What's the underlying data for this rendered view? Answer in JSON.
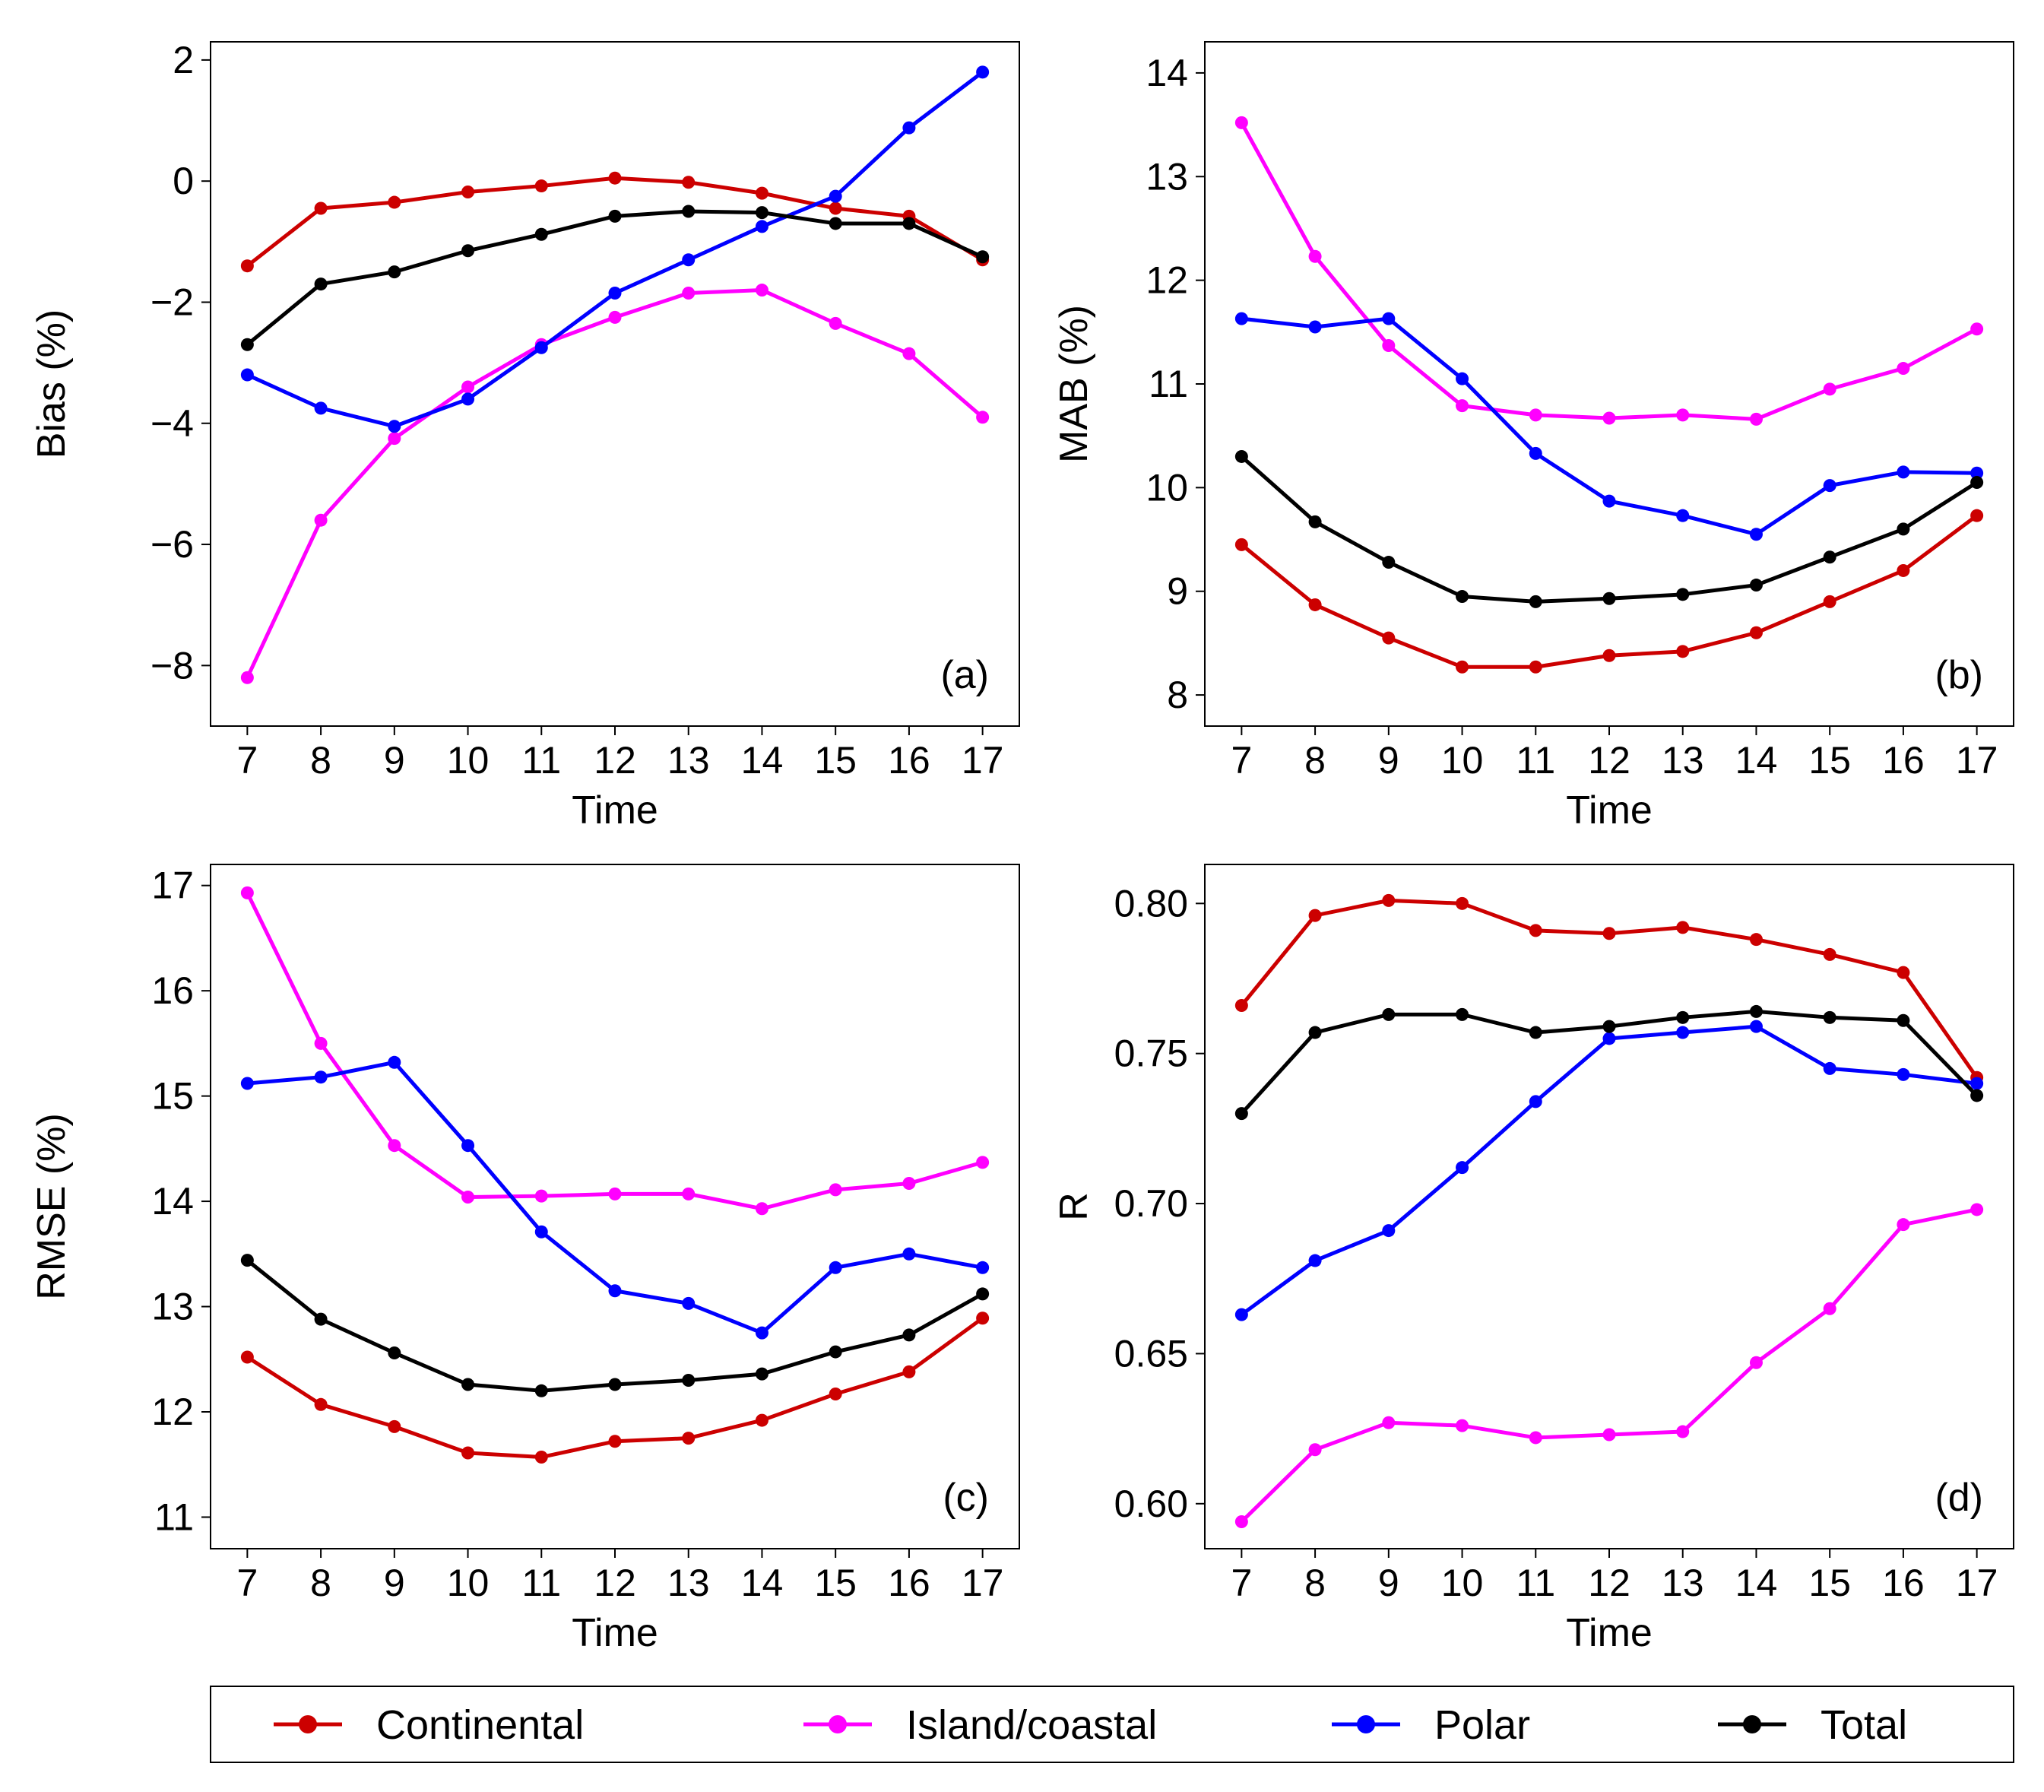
{
  "series_styles": [
    {
      "key": "continental",
      "color": "#cc0000"
    },
    {
      "key": "island",
      "color": "#ff00ff"
    },
    {
      "key": "polar",
      "color": "#0000ff"
    },
    {
      "key": "total",
      "color": "#000000"
    }
  ],
  "legend": {
    "placement": "bottom-center",
    "items": [
      {
        "label": "Continental",
        "color": "#cc0000"
      },
      {
        "label": "Island/coastal",
        "color": "#ff00ff"
      },
      {
        "label": "Polar",
        "color": "#0000ff"
      },
      {
        "label": "Total",
        "color": "#000000"
      }
    ]
  },
  "chart_data": [
    {
      "panel": "a",
      "tag": "(a)",
      "type": "line",
      "xlabel": "Time",
      "ylabel": "Bias (%)",
      "x": [
        7,
        8,
        9,
        10,
        11,
        12,
        13,
        14,
        15,
        16,
        17
      ],
      "xticks": [
        "7",
        "8",
        "9",
        "10",
        "11",
        "12",
        "13",
        "14",
        "15",
        "16",
        "17"
      ],
      "xlim": [
        6.5,
        17.5
      ],
      "ylim": [
        -9.0,
        2.3
      ],
      "yticks": [
        2,
        0,
        -2,
        -4,
        -6,
        -8
      ],
      "ytick_labels": [
        "2",
        "0",
        "−2",
        "−4",
        "−6",
        "−8"
      ],
      "series": [
        {
          "name": "Continental",
          "values": [
            -1.4,
            -0.45,
            -0.35,
            -0.18,
            -0.08,
            0.05,
            -0.02,
            -0.2,
            -0.45,
            -0.58,
            -1.3
          ]
        },
        {
          "name": "Island/coastal",
          "values": [
            -8.2,
            -5.6,
            -4.25,
            -3.4,
            -2.7,
            -2.25,
            -1.85,
            -1.8,
            -2.35,
            -2.85,
            -3.9
          ]
        },
        {
          "name": "Polar",
          "values": [
            -3.2,
            -3.75,
            -4.05,
            -3.6,
            -2.75,
            -1.85,
            -1.3,
            -0.75,
            -0.25,
            0.88,
            1.8
          ]
        },
        {
          "name": "Total",
          "values": [
            -2.7,
            -1.7,
            -1.5,
            -1.15,
            -0.88,
            -0.58,
            -0.5,
            -0.52,
            -0.7,
            -0.7,
            -1.25
          ]
        }
      ]
    },
    {
      "panel": "b",
      "tag": "(b)",
      "type": "line",
      "xlabel": "Time",
      "ylabel": "MAB (%)",
      "x": [
        7,
        8,
        9,
        10,
        11,
        12,
        13,
        14,
        15,
        16,
        17
      ],
      "xticks": [
        "7",
        "8",
        "9",
        "10",
        "11",
        "12",
        "13",
        "14",
        "15",
        "16",
        "17"
      ],
      "xlim": [
        6.5,
        17.5
      ],
      "ylim": [
        7.7,
        14.3
      ],
      "yticks": [
        8,
        9,
        10,
        11,
        12,
        13,
        14
      ],
      "ytick_labels": [
        "8",
        "9",
        "10",
        "11",
        "12",
        "13",
        "14"
      ],
      "series": [
        {
          "name": "Continental",
          "values": [
            9.45,
            8.87,
            8.55,
            8.27,
            8.27,
            8.38,
            8.42,
            8.6,
            8.9,
            9.2,
            9.73
          ]
        },
        {
          "name": "Island/coastal",
          "values": [
            13.52,
            12.23,
            11.37,
            10.79,
            10.7,
            10.67,
            10.7,
            10.66,
            10.95,
            11.15,
            11.53
          ]
        },
        {
          "name": "Polar",
          "values": [
            11.63,
            11.55,
            11.63,
            11.05,
            10.33,
            9.87,
            9.73,
            9.55,
            10.02,
            10.15,
            10.14
          ]
        },
        {
          "name": "Total",
          "values": [
            10.3,
            9.67,
            9.28,
            8.95,
            8.9,
            8.93,
            8.97,
            9.06,
            9.33,
            9.6,
            10.05
          ]
        }
      ]
    },
    {
      "panel": "c",
      "tag": "(c)",
      "type": "line",
      "xlabel": "Time",
      "ylabel": "RMSE (%)",
      "x": [
        7,
        8,
        9,
        10,
        11,
        12,
        13,
        14,
        15,
        16,
        17
      ],
      "xticks": [
        "7",
        "8",
        "9",
        "10",
        "11",
        "12",
        "13",
        "14",
        "15",
        "16",
        "17"
      ],
      "xlim": [
        6.5,
        17.5
      ],
      "ylim": [
        10.7,
        17.2
      ],
      "yticks": [
        11,
        12,
        13,
        14,
        15,
        16,
        17
      ],
      "ytick_labels": [
        "11",
        "12",
        "13",
        "14",
        "15",
        "16",
        "17"
      ],
      "series": [
        {
          "name": "Continental",
          "values": [
            12.52,
            12.07,
            11.86,
            11.61,
            11.57,
            11.72,
            11.75,
            11.92,
            12.17,
            12.38,
            12.89
          ]
        },
        {
          "name": "Island/coastal",
          "values": [
            16.93,
            15.5,
            14.53,
            14.04,
            14.05,
            14.07,
            14.07,
            13.93,
            14.11,
            14.17,
            14.37
          ]
        },
        {
          "name": "Polar",
          "values": [
            15.12,
            15.18,
            15.32,
            14.53,
            13.71,
            13.15,
            13.03,
            12.75,
            13.37,
            13.5,
            13.37
          ]
        },
        {
          "name": "Total",
          "values": [
            13.44,
            12.88,
            12.56,
            12.26,
            12.2,
            12.26,
            12.3,
            12.36,
            12.57,
            12.73,
            13.12
          ]
        }
      ]
    },
    {
      "panel": "d",
      "tag": "(d)",
      "type": "line",
      "xlabel": "Time",
      "ylabel": "R",
      "x": [
        7,
        8,
        9,
        10,
        11,
        12,
        13,
        14,
        15,
        16,
        17
      ],
      "xticks": [
        "7",
        "8",
        "9",
        "10",
        "11",
        "12",
        "13",
        "14",
        "15",
        "16",
        "17"
      ],
      "xlim": [
        6.5,
        17.5
      ],
      "ylim": [
        0.585,
        0.813
      ],
      "yticks": [
        0.6,
        0.65,
        0.7,
        0.75,
        0.8
      ],
      "ytick_labels": [
        "0.60",
        "0.65",
        "0.70",
        "0.75",
        "0.80"
      ],
      "series": [
        {
          "name": "Continental",
          "values": [
            0.766,
            0.796,
            0.801,
            0.8,
            0.791,
            0.79,
            0.792,
            0.788,
            0.783,
            0.777,
            0.742
          ]
        },
        {
          "name": "Island/coastal",
          "values": [
            0.594,
            0.618,
            0.627,
            0.626,
            0.622,
            0.623,
            0.624,
            0.647,
            0.665,
            0.693,
            0.698
          ]
        },
        {
          "name": "Polar",
          "values": [
            0.663,
            0.681,
            0.691,
            0.712,
            0.734,
            0.755,
            0.757,
            0.759,
            0.745,
            0.743,
            0.74
          ]
        },
        {
          "name": "Total",
          "values": [
            0.73,
            0.757,
            0.763,
            0.763,
            0.757,
            0.759,
            0.762,
            0.764,
            0.762,
            0.761,
            0.736
          ]
        }
      ]
    }
  ]
}
